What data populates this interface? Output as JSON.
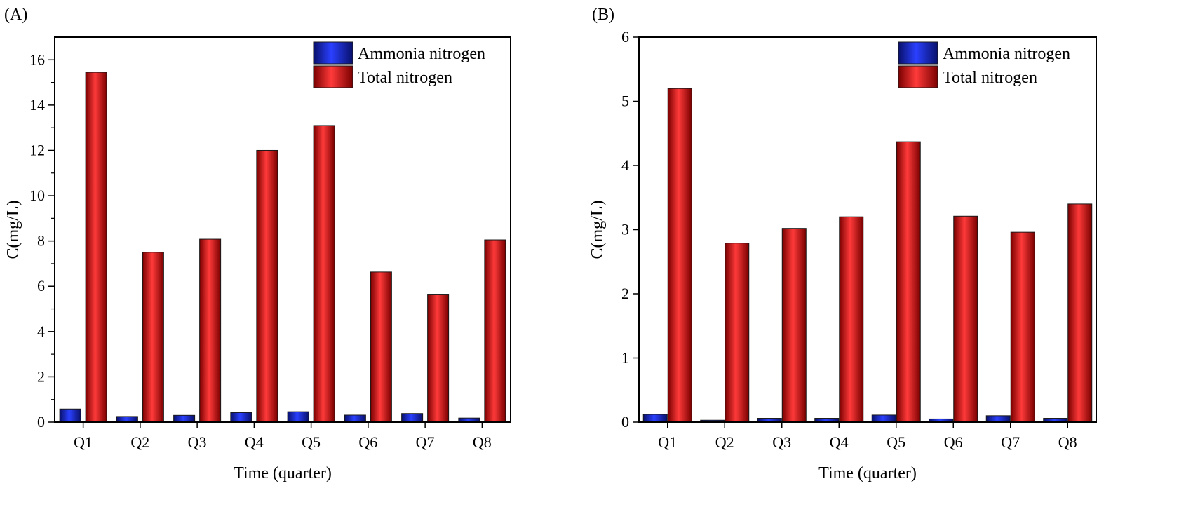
{
  "chart_data": [
    {
      "type": "bar",
      "panel_label": "(A)",
      "xlabel": "Time (quarter)",
      "ylabel": "C(mg/L)",
      "ylim": [
        0,
        17
      ],
      "yticks": [
        0,
        2,
        4,
        6,
        8,
        10,
        12,
        14,
        16
      ],
      "categories": [
        "Q1",
        "Q2",
        "Q3",
        "Q4",
        "Q5",
        "Q6",
        "Q7",
        "Q8"
      ],
      "legend_position": "top-right",
      "series": [
        {
          "name": "Ammonia nitrogen",
          "color": "#1020e0",
          "values": [
            0.58,
            0.25,
            0.3,
            0.42,
            0.46,
            0.31,
            0.38,
            0.18
          ]
        },
        {
          "name": "Total nitrogen",
          "color": "#ee1c1c",
          "values": [
            15.45,
            7.5,
            8.08,
            12.0,
            13.1,
            6.63,
            5.65,
            8.05
          ]
        }
      ]
    },
    {
      "type": "bar",
      "panel_label": "(B)",
      "xlabel": "Time (quarter)",
      "ylabel": "C(mg/L)",
      "ylim": [
        0,
        6
      ],
      "yticks": [
        0,
        1,
        2,
        3,
        4,
        5,
        6
      ],
      "categories": [
        "Q1",
        "Q2",
        "Q3",
        "Q4",
        "Q5",
        "Q6",
        "Q7",
        "Q8"
      ],
      "legend_position": "top-right",
      "series": [
        {
          "name": "Ammonia nitrogen",
          "color": "#1020e0",
          "values": [
            0.12,
            0.03,
            0.06,
            0.06,
            0.11,
            0.05,
            0.1,
            0.06
          ]
        },
        {
          "name": "Total nitrogen",
          "color": "#ee1c1c",
          "values": [
            5.2,
            2.79,
            3.02,
            3.2,
            4.37,
            3.21,
            2.96,
            3.4
          ]
        }
      ]
    }
  ]
}
